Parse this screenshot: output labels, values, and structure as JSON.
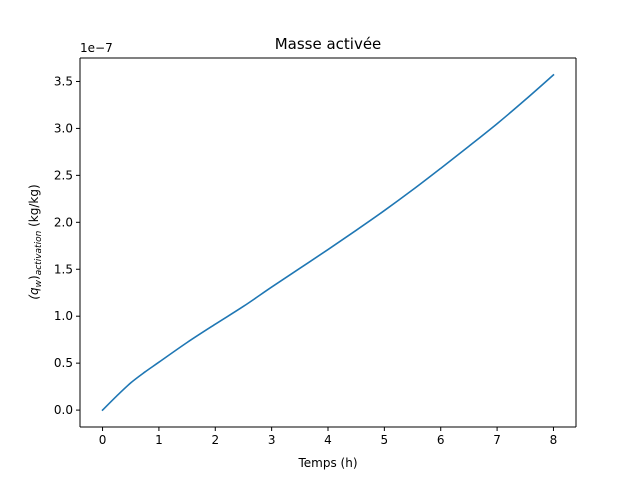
{
  "chart_data": {
    "type": "line",
    "title": "Masse activée",
    "xlabel": "Temps (h)",
    "ylabel_main": "(q",
    "ylabel_sub_w": "w",
    "ylabel_paren": ")",
    "ylabel_sub_act": "activation",
    "ylabel_unit": " (kg/kg)",
    "offset_text": "1e−7",
    "xlim": [
      -0.4,
      8.4
    ],
    "ylim": [
      -1.8e-08,
      3.75e-07
    ],
    "xticks": [
      0,
      1,
      2,
      3,
      4,
      5,
      6,
      7,
      8
    ],
    "xtick_labels": [
      "0",
      "1",
      "2",
      "3",
      "4",
      "5",
      "6",
      "7",
      "8"
    ],
    "yticks": [
      0,
      5e-08,
      1e-07,
      1.5e-07,
      2e-07,
      2.5e-07,
      3e-07,
      3.5e-07
    ],
    "ytick_labels": [
      "0.0",
      "0.5",
      "1.0",
      "1.5",
      "2.0",
      "2.5",
      "3.0",
      "3.5"
    ],
    "grid": false,
    "series": [
      {
        "color": "#1f77b4",
        "x": [
          0,
          0.25,
          0.5,
          0.75,
          1,
          1.5,
          2,
          2.5,
          3,
          3.5,
          4,
          4.5,
          5,
          5.5,
          6,
          6.5,
          7,
          7.5,
          8
        ],
        "y": [
          0,
          1.5e-08,
          2.9e-08,
          4.05e-08,
          5.1e-08,
          7.2e-08,
          9.15e-08,
          1.105e-07,
          1.31e-07,
          1.51e-07,
          1.71e-07,
          1.915e-07,
          2.125e-07,
          2.345e-07,
          2.575e-07,
          2.81e-07,
          3.05e-07,
          3.305e-07,
          3.57e-07
        ]
      }
    ]
  }
}
